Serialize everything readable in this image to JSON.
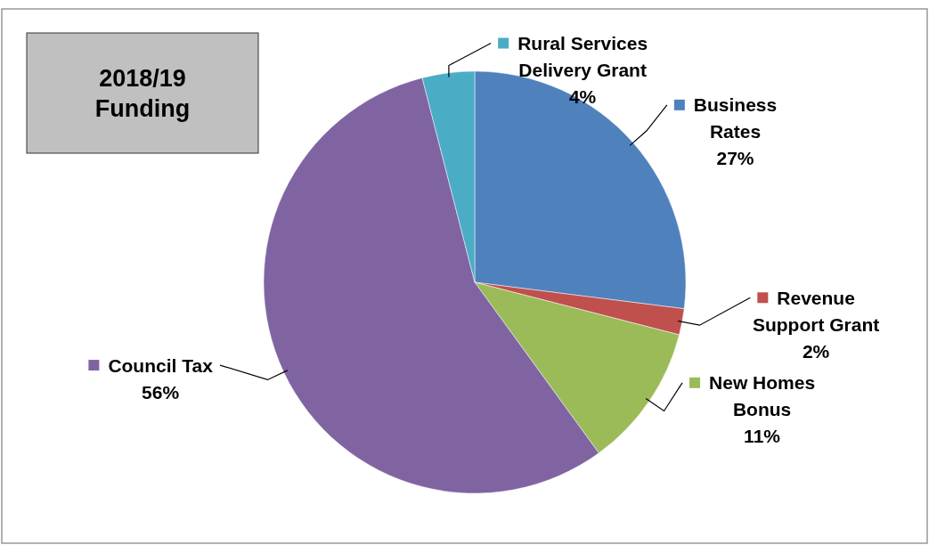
{
  "chart_data": {
    "type": "pie",
    "title": "2018/19 Funding",
    "categories": [
      "Business Rates",
      "Revenue Support Grant",
      "New Homes Bonus",
      "Council Tax",
      "Rural Services Delivery Grant"
    ],
    "values": [
      27,
      2,
      11,
      56,
      4
    ],
    "value_labels": [
      "27%",
      "2%",
      "11%",
      "56%",
      "4%"
    ],
    "colors": [
      "#4f81bd",
      "#c0504d",
      "#9bbb59",
      "#8064a2",
      "#4bacc6"
    ],
    "legend": "right"
  }
}
